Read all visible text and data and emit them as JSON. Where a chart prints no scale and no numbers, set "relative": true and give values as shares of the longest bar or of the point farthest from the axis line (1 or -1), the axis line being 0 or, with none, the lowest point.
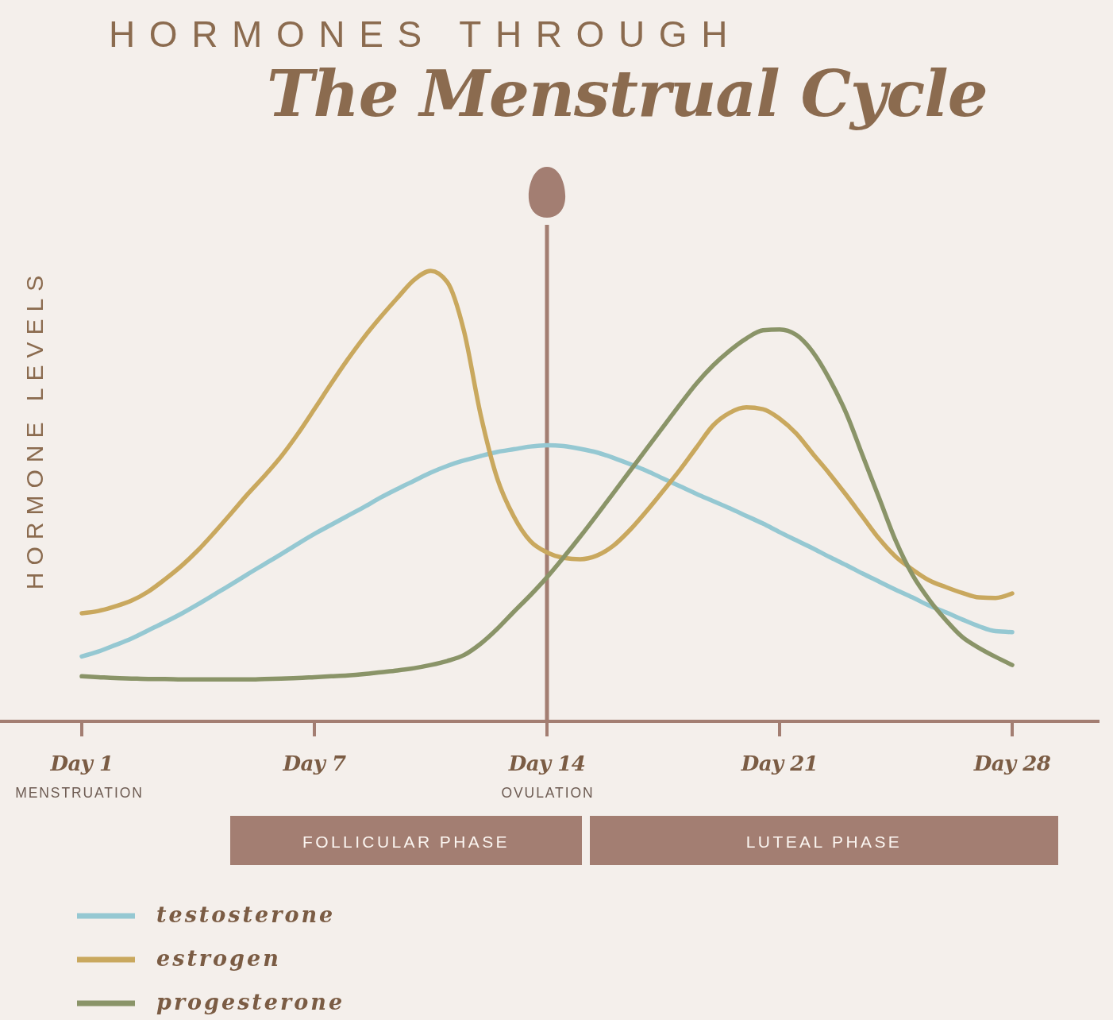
{
  "chart_data": {
    "type": "line",
    "title": "HORMONES THROUGH",
    "subtitle": "The Menstrual Cycle",
    "ylabel": "HORMONE LEVELS",
    "relative": true,
    "categories": [
      "Day 1",
      null,
      null,
      null,
      null,
      null,
      null,
      null,
      null,
      null,
      null,
      null,
      null,
      null,
      "Day 7",
      null,
      null,
      null,
      null,
      null,
      null,
      null,
      null,
      null,
      null,
      null,
      null,
      null,
      "Day 14",
      null,
      null,
      null,
      null,
      null,
      null,
      null,
      null,
      null,
      null,
      null,
      null,
      null,
      "Day 21",
      null,
      null,
      null,
      null,
      null,
      null,
      null,
      null,
      null,
      null,
      null,
      null,
      null,
      "Day 28"
    ],
    "series": [
      {
        "name": "testosterone",
        "color": "#95c8d2",
        "values": [
          0.144,
          0.155,
          0.169,
          0.184,
          0.202,
          0.22,
          0.239,
          0.26,
          0.282,
          0.304,
          0.327,
          0.349,
          0.371,
          0.394,
          0.416,
          0.436,
          0.456,
          0.476,
          0.497,
          0.516,
          0.534,
          0.552,
          0.567,
          0.579,
          0.589,
          0.598,
          0.604,
          0.61,
          0.613,
          0.611,
          0.605,
          0.597,
          0.585,
          0.571,
          0.556,
          0.539,
          0.522,
          0.505,
          0.489,
          0.473,
          0.456,
          0.439,
          0.42,
          0.402,
          0.384,
          0.365,
          0.347,
          0.328,
          0.31,
          0.292,
          0.275,
          0.257,
          0.242,
          0.226,
          0.211,
          0.2,
          0.198
        ]
      },
      {
        "name": "estrogen",
        "color": "#c9a85e",
        "values": [
          0.24,
          0.245,
          0.255,
          0.268,
          0.288,
          0.315,
          0.345,
          0.38,
          0.42,
          0.462,
          0.505,
          0.545,
          0.588,
          0.638,
          0.693,
          0.749,
          0.803,
          0.853,
          0.898,
          0.94,
          0.98,
          1,
          0.975,
          0.867,
          0.682,
          0.54,
          0.455,
          0.4,
          0.375,
          0.363,
          0.36,
          0.368,
          0.39,
          0.425,
          0.467,
          0.512,
          0.558,
          0.608,
          0.657,
          0.685,
          0.697,
          0.693,
          0.672,
          0.639,
          0.594,
          0.55,
          0.503,
          0.454,
          0.405,
          0.365,
          0.337,
          0.313,
          0.298,
          0.285,
          0.275,
          0.274,
          0.284
        ]
      },
      {
        "name": "progesterone",
        "color": "#8a9468",
        "values": [
          0.1,
          0.098,
          0.096,
          0.095,
          0.094,
          0.094,
          0.093,
          0.093,
          0.093,
          0.093,
          0.093,
          0.094,
          0.095,
          0.096,
          0.098,
          0.1,
          0.102,
          0.105,
          0.109,
          0.113,
          0.118,
          0.125,
          0.134,
          0.147,
          0.172,
          0.205,
          0.243,
          0.28,
          0.32,
          0.364,
          0.41,
          0.458,
          0.507,
          0.556,
          0.605,
          0.654,
          0.703,
          0.75,
          0.79,
          0.823,
          0.85,
          0.868,
          0.87,
          0.858,
          0.82,
          0.76,
          0.685,
          0.59,
          0.495,
          0.4,
          0.325,
          0.27,
          0.225,
          0.187,
          0.163,
          0.143,
          0.125
        ]
      }
    ],
    "ref_lines": [
      {
        "axis": "x",
        "value": "Day 14",
        "color": "#a37e72"
      }
    ],
    "annotations": [
      "MENSTRUATION",
      "OVULATION",
      "FOLLICULAR PHASE",
      "LUTEAL PHASE"
    ],
    "legend": "bottom left",
    "line_style": "solid"
  }
}
